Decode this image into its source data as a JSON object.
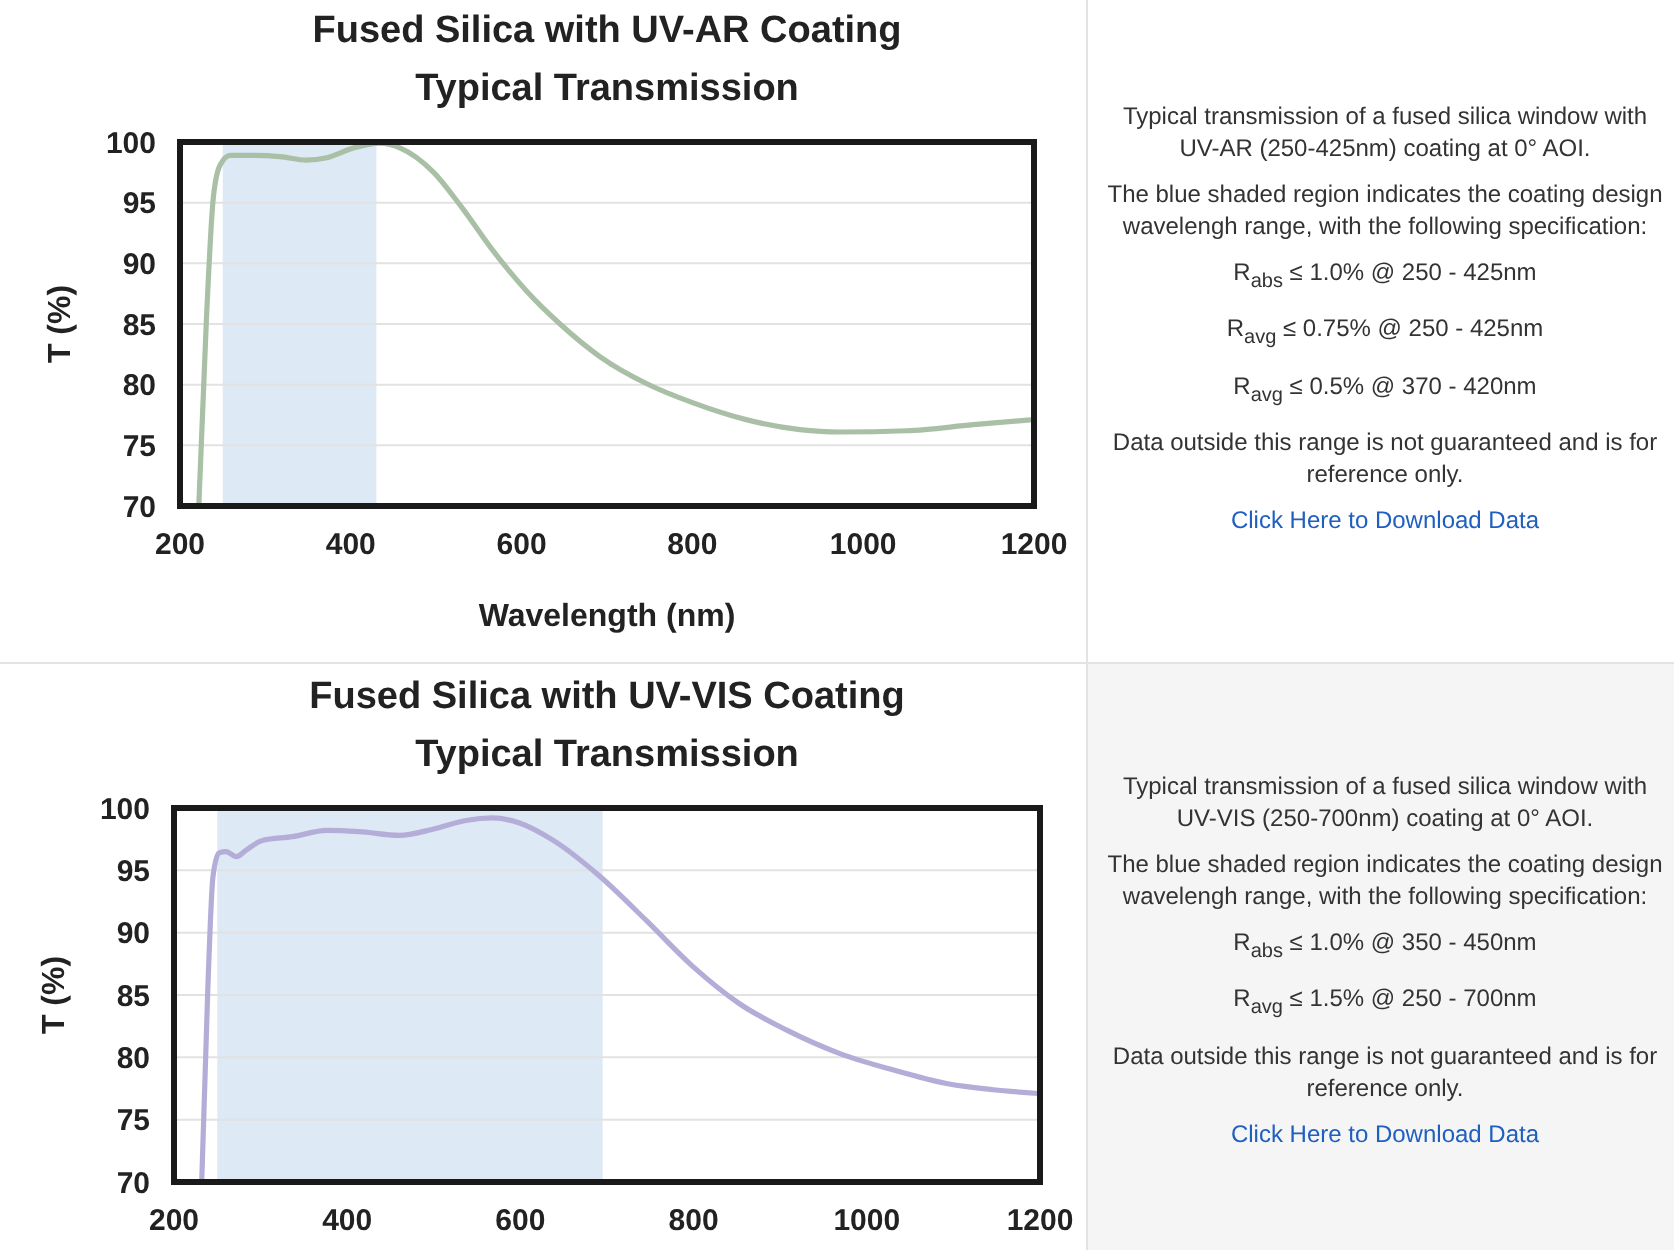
{
  "chart_data": [
    {
      "type": "line",
      "title": "Fused Silica with UV-AR Coating",
      "subtitle": "Typical Transmission",
      "xlabel": "Wavelength (nm)",
      "ylabel": "T (%)",
      "xlim": [
        200,
        1200
      ],
      "ylim": [
        70,
        100
      ],
      "xticks": [
        200,
        400,
        600,
        800,
        1000,
        1200
      ],
      "yticks": [
        70,
        75,
        80,
        85,
        90,
        95,
        100
      ],
      "grid": "y",
      "bands": [
        {
          "axis": "x",
          "from": 250,
          "to": 430,
          "color": "#dde9f5"
        }
      ],
      "series": [
        {
          "color": "#a9bfa6",
          "x": [
            222,
            231,
            239,
            247,
            259,
            286,
            317,
            348,
            372,
            403,
            434,
            458,
            497,
            528,
            567,
            606,
            645,
            692,
            746,
            801,
            864,
            926,
            973,
            1051,
            1129,
            1195
          ],
          "values": [
            70,
            85.5,
            95.4,
            98.1,
            98.9,
            98.9,
            98.8,
            98.5,
            98.7,
            99.5,
            99.9,
            99.5,
            97.5,
            94.8,
            91,
            87.7,
            85,
            82.3,
            80.1,
            78.5,
            77.1,
            76.3,
            76.1,
            76.2,
            76.7,
            77.1
          ]
        }
      ]
    },
    {
      "type": "other",
      "annotations": [
        "Typical transmission of a fused silica window with UV-AR (250-425nm) coating at 0° AOI.",
        "The blue shaded region indicates the coating design wavelengh range, with the following specification:",
        "R$_{abs}$ ≤ 1.0% @ 250 - 425nm",
        "R$_{avg}$ ≤ 0.75% @ 250 - 425nm",
        "R$_{avg}$ ≤ 0.5% @ 370 - 420nm",
        "Data outside this range is not guaranteed and is for reference only.",
        "Click Here to Download Data"
      ]
    },
    {
      "type": "line",
      "title": "Fused Silica with UV-VIS Coating",
      "subtitle": "Typical Transmission",
      "ylabel": "T (%)",
      "xlim": [
        200,
        1200
      ],
      "ylim": [
        70,
        100
      ],
      "xticks": [
        200,
        400,
        600,
        800,
        1000,
        1200
      ],
      "yticks": [
        70,
        75,
        80,
        85,
        90,
        95,
        100
      ],
      "grid": "y",
      "bands": [
        {
          "axis": "x",
          "from": 250,
          "to": 695,
          "color": "#dde9f5"
        }
      ],
      "series": [
        {
          "color": "#b4add8",
          "x": [
            232,
            239,
            245,
            252,
            260,
            272,
            283,
            302,
            337,
            376,
            414,
            460,
            499,
            537,
            568,
            599,
            638,
            692,
            745,
            799,
            853,
            907,
            969,
            1030,
            1092,
            1146,
            1198
          ],
          "values": [
            70,
            85.4,
            94.5,
            96.4,
            96.5,
            96.1,
            96.6,
            97.4,
            97.7,
            98.2,
            98.1,
            97.8,
            98.3,
            99,
            99.2,
            98.8,
            97.4,
            94.5,
            91,
            87.3,
            84.3,
            82.2,
            80.3,
            79,
            77.9,
            77.4,
            77.1
          ]
        }
      ]
    },
    {
      "type": "other",
      "annotations": [
        "Typical transmission of a fused silica window with UV-VIS (250-700nm) coating at 0° AOI.",
        "The blue shaded region indicates the coating design wavelengh range, with the following specification:",
        "R$_{abs}$ ≤ 1.0% @ 350 - 450nm",
        "R$_{avg}$ ≤ 1.5% @ 250 - 700nm",
        "Data outside this range is not guaranteed and is for reference only.",
        "Click Here to Download Data"
      ]
    }
  ]
}
